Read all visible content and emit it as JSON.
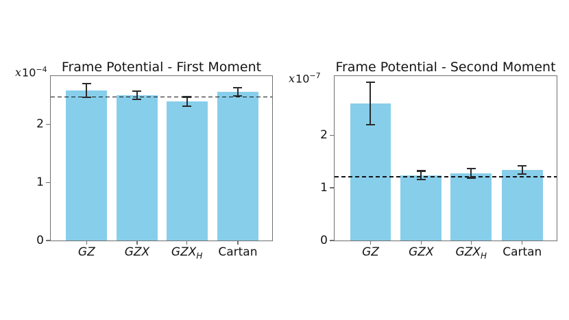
{
  "figure": {
    "background": "#ffffff",
    "spine_color": "#6e6e6e",
    "text_color": "#141414"
  },
  "chart_data": [
    {
      "type": "bar",
      "title": "Frame Potential - First Moment",
      "offset_label": {
        "mult": "x",
        "base": "10",
        "exp": "−4"
      },
      "categories": [
        {
          "text": "GZ",
          "sub": "",
          "italic": true
        },
        {
          "text": "GZX",
          "sub": "",
          "italic": true
        },
        {
          "text": "GZX",
          "sub": "H",
          "italic": true
        },
        {
          "text": "Cartan",
          "sub": "",
          "italic": false
        }
      ],
      "values": [
        2.58,
        2.5,
        2.39,
        2.56
      ],
      "errors": [
        0.12,
        0.07,
        0.08,
        0.07
      ],
      "dashed_reference_line": 2.47,
      "ylim": [
        0,
        2.83
      ],
      "yticks": [
        0,
        1,
        2
      ],
      "value_scale": "1e-4",
      "legend": "none",
      "grid": false,
      "bar_color": "#87CEEB",
      "error_color": "#2a2a2a",
      "dash_color": "#121212"
    },
    {
      "type": "bar",
      "title": "Frame Potential - Second Moment",
      "offset_label": {
        "mult": "x",
        "base": "10",
        "exp": "−7"
      },
      "categories": [
        {
          "text": "GZ",
          "sub": "",
          "italic": true
        },
        {
          "text": "GZX",
          "sub": "",
          "italic": true
        },
        {
          "text": "GZX",
          "sub": "H",
          "italic": true
        },
        {
          "text": "Cartan",
          "sub": "",
          "italic": false
        }
      ],
      "values": [
        2.6,
        1.24,
        1.28,
        1.34
      ],
      "errors": [
        0.4,
        0.08,
        0.09,
        0.08
      ],
      "dashed_reference_line": 1.21,
      "ylim": [
        0,
        3.12
      ],
      "yticks": [
        0,
        1,
        2
      ],
      "value_scale": "1e-7",
      "legend": "none",
      "grid": false,
      "bar_color": "#87CEEB",
      "error_color": "#2a2a2a",
      "dash_color": "#121212"
    }
  ]
}
